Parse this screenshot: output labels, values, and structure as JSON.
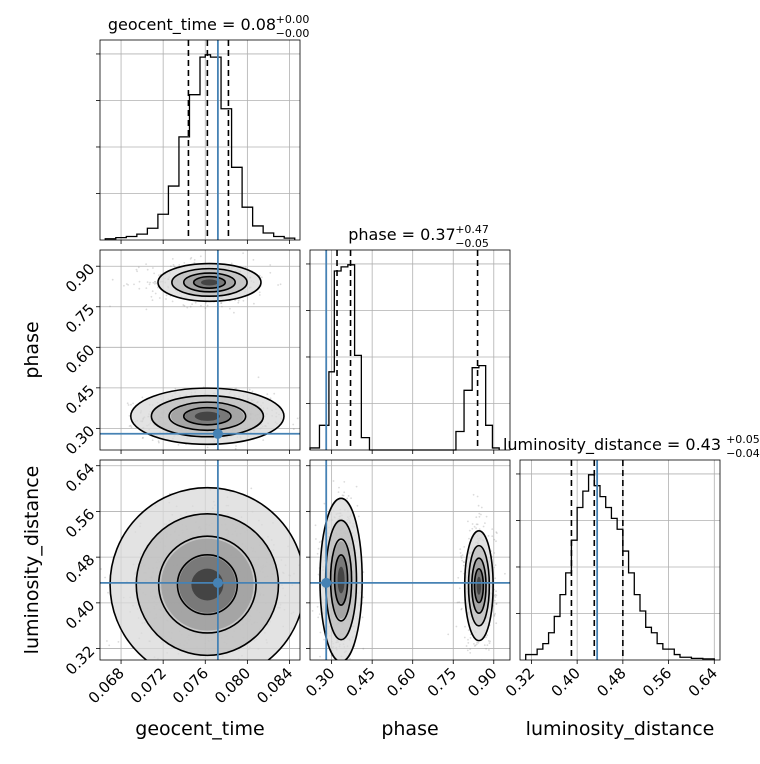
{
  "colors": {
    "truth": "#4682b4",
    "hist": "#000000",
    "points": "#7f7f7f"
  },
  "chart_data": {
    "type": "corner",
    "parameters": [
      {
        "name": "geocent_time",
        "label": "geocent_time",
        "range": [
          0.066,
          0.085
        ],
        "ticks": [
          0.068,
          0.072,
          0.076,
          0.08,
          0.084
        ],
        "tick_labels": [
          "0.068",
          "0.072",
          "0.076",
          "0.080",
          "0.084"
        ],
        "truth": 0.0772,
        "median": 0.0762,
        "q16": 0.0744,
        "q84": 0.0782,
        "title_main": "geocent_time = 0.08",
        "title_plus": "+0.00",
        "title_minus": "−0.00"
      },
      {
        "name": "phase",
        "label": "phase",
        "range": [
          0.22,
          0.96
        ],
        "ticks": [
          0.3,
          0.45,
          0.6,
          0.75,
          0.9
        ],
        "tick_labels": [
          "0.30",
          "0.45",
          "0.60",
          "0.75",
          "0.90"
        ],
        "truth": 0.28,
        "median": 0.37,
        "q16": 0.32,
        "q84": 0.84,
        "title_main": "phase = 0.37",
        "title_plus": "+0.47",
        "title_minus": "−0.05"
      },
      {
        "name": "luminosity_distance",
        "label": "luminosity_distance",
        "range": [
          0.3,
          0.65
        ],
        "ticks": [
          0.32,
          0.4,
          0.48,
          0.56,
          0.64
        ],
        "tick_labels": [
          "0.32",
          "0.40",
          "0.48",
          "0.56",
          "0.64"
        ],
        "truth": 0.435,
        "median": 0.43,
        "q16": 0.39,
        "q84": 0.48,
        "title_main": "luminosity_distance = 0.43",
        "title_plus": "+0.05",
        "title_minus": "−0.04"
      }
    ],
    "histograms": [
      {
        "param": "geocent_time",
        "bin_edges": [
          0.0665,
          0.0675,
          0.0685,
          0.0695,
          0.0705,
          0.0715,
          0.0725,
          0.0735,
          0.0745,
          0.0755,
          0.076,
          0.0765,
          0.0775,
          0.0785,
          0.0795,
          0.0805,
          0.0815,
          0.0825,
          0.0835,
          0.0845
        ],
        "counts": [
          0.5,
          1,
          1.5,
          2.5,
          5,
          11,
          23,
          44,
          62,
          78,
          79,
          78,
          56,
          31,
          14,
          6,
          3,
          1.5,
          0.8
        ]
      },
      {
        "param": "phase",
        "bin_edges": [
          0.22,
          0.255,
          0.29,
          0.31,
          0.335,
          0.36,
          0.385,
          0.41,
          0.44,
          0.76,
          0.79,
          0.82,
          0.845,
          0.87,
          0.895,
          0.92
        ],
        "counts": [
          1,
          12,
          38,
          87,
          89,
          90,
          46,
          6,
          0,
          9,
          29,
          40,
          41,
          12,
          1
        ]
      },
      {
        "param": "luminosity_distance",
        "bin_edges": [
          0.31,
          0.32,
          0.33,
          0.34,
          0.35,
          0.36,
          0.37,
          0.38,
          0.39,
          0.4,
          0.41,
          0.42,
          0.43,
          0.44,
          0.45,
          0.46,
          0.47,
          0.48,
          0.49,
          0.5,
          0.51,
          0.52,
          0.53,
          0.54,
          0.55,
          0.56,
          0.57,
          0.58,
          0.6,
          0.62,
          0.64
        ],
        "counts": [
          1,
          1,
          2,
          3,
          5,
          8,
          12,
          16,
          22,
          28,
          31,
          34,
          32,
          30,
          28,
          26,
          24,
          20,
          16,
          12,
          9,
          6,
          5,
          3,
          2,
          2,
          1,
          0.5,
          0.3,
          0.2
        ]
      }
    ],
    "density_2d": [
      {
        "x": "geocent_time",
        "y": "phase",
        "modes": [
          {
            "x": 0.0762,
            "y": 0.345,
            "sx": 0.0028,
            "sy": 0.04,
            "weight": 0.7
          },
          {
            "x": 0.0764,
            "y": 0.84,
            "sx": 0.0028,
            "sy": 0.04,
            "weight": 0.3
          }
        ]
      },
      {
        "x": "geocent_time",
        "y": "luminosity_distance",
        "modes": [
          {
            "x": 0.0762,
            "y": 0.432,
            "sx": 0.003,
            "sy": 0.055,
            "weight": 1.0
          }
        ]
      },
      {
        "x": "phase",
        "y": "luminosity_distance",
        "modes": [
          {
            "x": 0.335,
            "y": 0.44,
            "sx": 0.03,
            "sy": 0.055,
            "weight": 0.7
          },
          {
            "x": 0.845,
            "y": 0.43,
            "sx": 0.03,
            "sy": 0.055,
            "weight": 0.3
          }
        ]
      }
    ],
    "grid": true
  }
}
